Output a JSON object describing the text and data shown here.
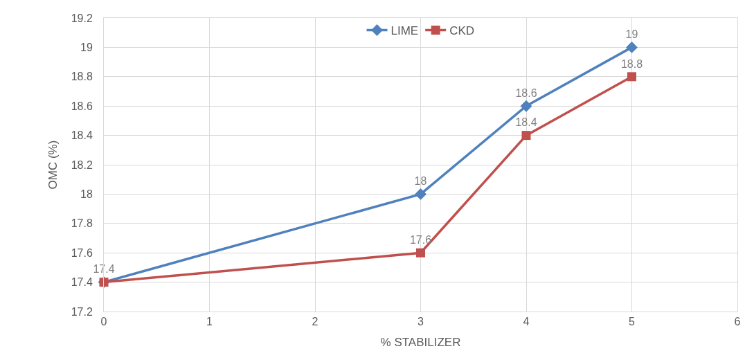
{
  "chart_data": {
    "type": "line",
    "xlabel": "% STABILIZER",
    "ylabel": "OMC (%)",
    "series": [
      {
        "name": "LIME",
        "color": "#4f81bd",
        "marker": "diamond",
        "x": [
          0,
          3,
          4,
          5
        ],
        "values": [
          17.4,
          18,
          18.6,
          19
        ]
      },
      {
        "name": "CKD",
        "color": "#c0504d",
        "marker": "square",
        "x": [
          0,
          3,
          4,
          5
        ],
        "values": [
          17.4,
          17.6,
          18.4,
          18.8
        ],
        "value_labels": [
          null,
          "17.6",
          "18.4",
          "18.8"
        ]
      }
    ],
    "xlim": [
      0,
      6
    ],
    "xticks": [
      0,
      1,
      2,
      3,
      4,
      5,
      6
    ],
    "ylim": [
      17.2,
      19.2
    ],
    "yticks": [
      17.2,
      17.4,
      17.6,
      17.8,
      18,
      18.2,
      18.4,
      18.6,
      18.8,
      19,
      19.2
    ],
    "grid": true,
    "legend": "top",
    "data_labels": true,
    "line_style": "solid"
  }
}
